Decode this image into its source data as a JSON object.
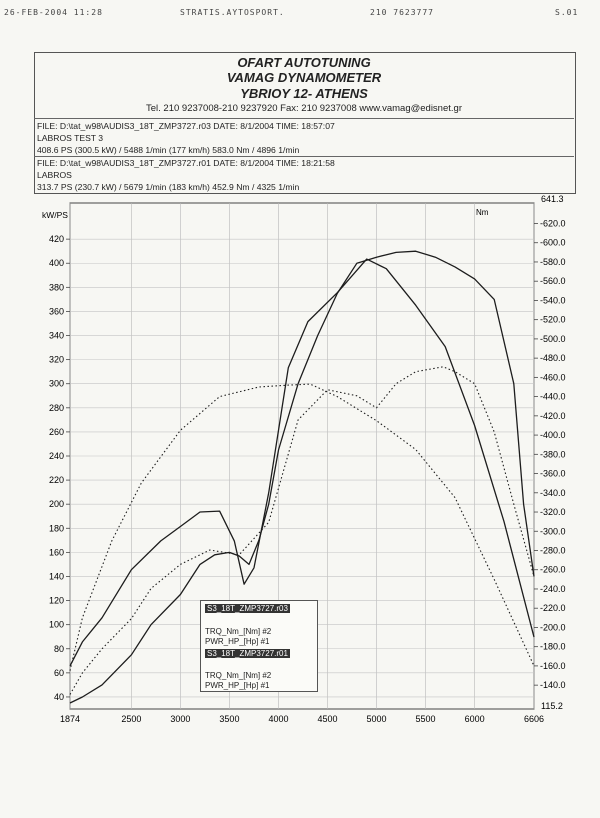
{
  "fax_header": {
    "date": "26-FEB-2004 11:28",
    "from": "STRATIS.AYTOSPORT.",
    "phone": "210 7623777",
    "page": "S.01"
  },
  "header": {
    "title1": "OFART AUTOTUNING",
    "title2": "VAMAG DYNAMOMETER",
    "title3": "YBRIOY 12- ATHENS",
    "contact": "Tel. 210 9237008-210 9237920 Fax: 210 9237008 www.vamag@edisnet.gr"
  },
  "files": [
    {
      "file_line": "FILE: D:\\tat_w98\\AUDIS3_18T_ZMP3727.r03  DATE: 8/1/2004  TIME: 18:57:07",
      "name": "LABROS TEST 3",
      "result": "408.6 PS  (300.5 kW) / 5488 1/min (177 km/h)    583.0 Nm / 4896 1/min"
    },
    {
      "file_line": "FILE: D:\\tat_w98\\AUDIS3_18T_ZMP3727.r01  DATE: 8/1/2004  TIME: 18:21:58",
      "name": "LABROS",
      "result": "313.7 PS  (230.7 kW) / 5679 1/min (183 km/h)    452.9 Nm / 4325 1/min"
    }
  ],
  "legend": {
    "file1": "S3_18T_ZMP3727.r03",
    "file1_items": [
      "TRQ_Nm_[Nm] #2",
      "PWR_HP_[Hp] #1"
    ],
    "file2": "S3_18T_ZMP3727.r01",
    "file2_items": [
      "TRQ_Nm_[Nm] #2",
      "PWR_HP_[Hp] #1"
    ]
  },
  "chart_data": {
    "type": "line",
    "x_range": [
      1874,
      6606
    ],
    "x_ticks": [
      "1874",
      "2500",
      "3000",
      "3500",
      "4000",
      "4500",
      "5000",
      "5500",
      "6000",
      "6606"
    ],
    "y_left": {
      "label": "kW/PS",
      "range": [
        30,
        450
      ],
      "ticks": [
        40,
        60,
        80,
        100,
        120,
        140,
        160,
        180,
        200,
        220,
        240,
        260,
        280,
        300,
        320,
        340,
        360,
        380,
        400,
        420
      ]
    },
    "y_right": {
      "label": "Nm",
      "range": [
        115.2,
        641.3
      ],
      "top_label": "641.3",
      "bottom_label": "115.2",
      "ticks": [
        140,
        160,
        180,
        200,
        220,
        240,
        260,
        280,
        300,
        320,
        340,
        360,
        380,
        400,
        420,
        440,
        460,
        480,
        500,
        520,
        540,
        560,
        580,
        600,
        620
      ]
    },
    "grid": true,
    "series": [
      {
        "file": "r03",
        "quantity": "power",
        "axis": "left",
        "style": "solid",
        "x": [
          1874,
          2000,
          2200,
          2500,
          2700,
          3000,
          3200,
          3350,
          3500,
          3600,
          3700,
          3800,
          3900,
          4000,
          4200,
          4400,
          4600,
          4800,
          5000,
          5200,
          5400,
          5600,
          5800,
          6000,
          6200,
          6400,
          6500,
          6606
        ],
        "y": [
          35,
          40,
          50,
          75,
          100,
          125,
          150,
          158,
          160,
          157,
          150,
          170,
          200,
          245,
          300,
          340,
          375,
          400,
          405,
          409,
          410,
          405,
          397,
          387,
          370,
          300,
          200,
          140
        ]
      },
      {
        "file": "r03",
        "quantity": "torque",
        "axis": "right",
        "style": "solid",
        "x": [
          1874,
          2000,
          2200,
          2500,
          2800,
          3000,
          3200,
          3400,
          3550,
          3650,
          3750,
          3900,
          4100,
          4300,
          4600,
          4900,
          5100,
          5400,
          5700,
          6000,
          6300,
          6606
        ],
        "y": [
          160,
          185,
          210,
          260,
          290,
          305,
          320,
          321,
          290,
          245,
          262,
          340,
          470,
          518,
          548,
          583,
          573,
          535,
          492,
          410,
          310,
          190
        ]
      },
      {
        "file": "r01",
        "quantity": "power",
        "axis": "left",
        "style": "dotted",
        "x": [
          1874,
          2000,
          2200,
          2500,
          2700,
          3000,
          3300,
          3600,
          3900,
          4200,
          4500,
          4800,
          5000,
          5200,
          5400,
          5679,
          5800,
          6000,
          6200,
          6400,
          6606
        ],
        "y": [
          42,
          60,
          80,
          105,
          130,
          150,
          162,
          158,
          185,
          270,
          295,
          290,
          280,
          300,
          310,
          314,
          310,
          300,
          260,
          200,
          140
        ]
      },
      {
        "file": "r01",
        "quantity": "torque",
        "axis": "right",
        "style": "dotted",
        "x": [
          1874,
          2000,
          2300,
          2600,
          3000,
          3400,
          3800,
          4100,
          4325,
          4600,
          5000,
          5400,
          5800,
          6200,
          6606
        ],
        "y": [
          155,
          210,
          290,
          350,
          405,
          440,
          450,
          452,
          453,
          440,
          415,
          385,
          335,
          250,
          160
        ]
      }
    ]
  }
}
